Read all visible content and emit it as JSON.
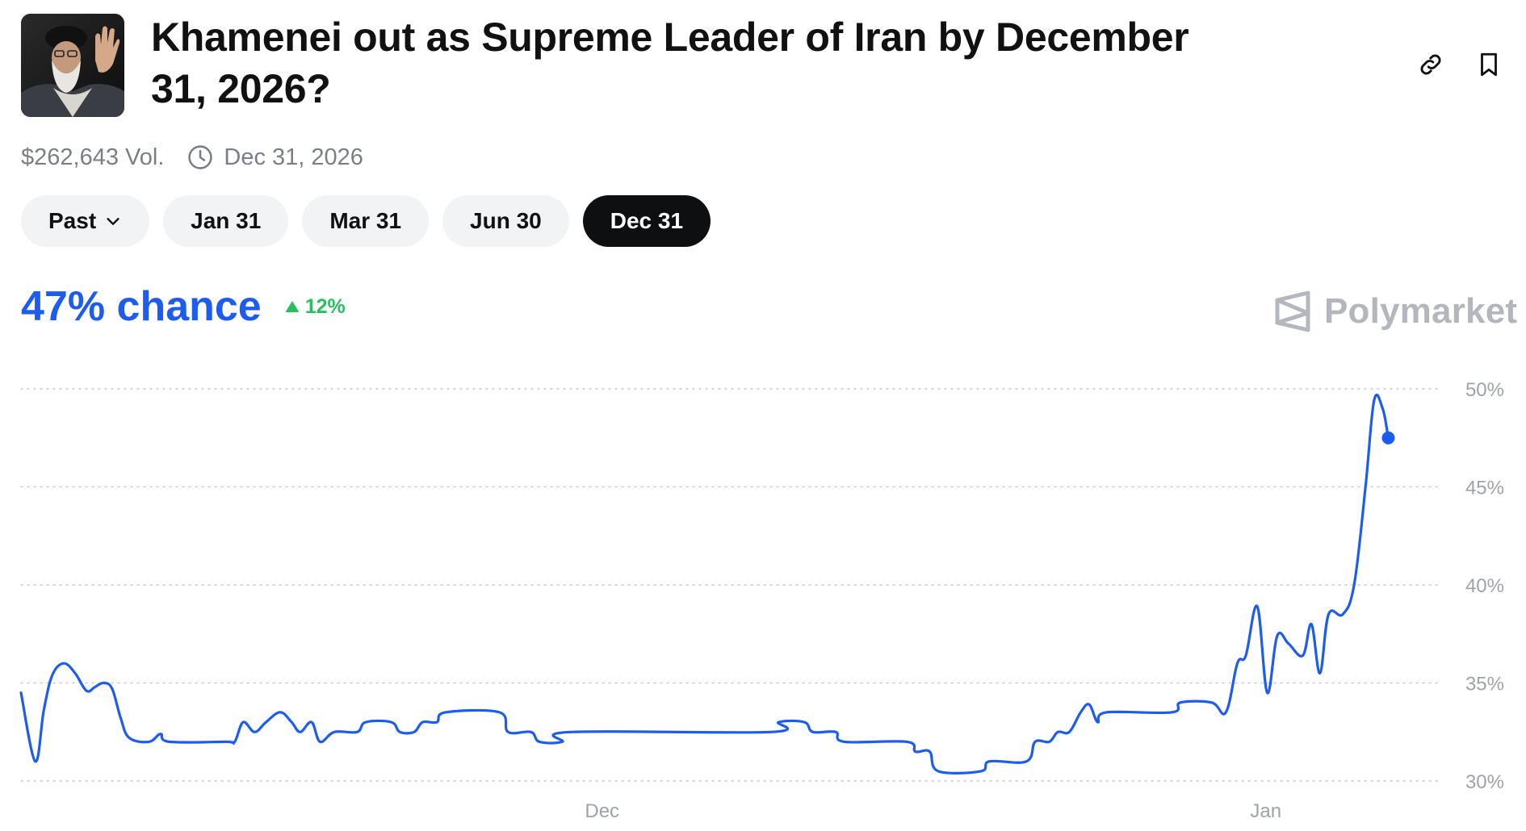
{
  "header": {
    "title": "Khamenei out as Supreme Leader of Iran by December 31, 2026?",
    "link_icon": "link-icon",
    "bookmark_icon": "bookmark-icon"
  },
  "meta": {
    "volume": "$262,643 Vol.",
    "end_date": "Dec 31, 2026",
    "clock_icon": "clock-icon"
  },
  "tabs": [
    {
      "label": "Past",
      "has_chevron": true,
      "active": false
    },
    {
      "label": "Jan 31",
      "active": false
    },
    {
      "label": "Mar 31",
      "active": false
    },
    {
      "label": "Jun 30",
      "active": false
    },
    {
      "label": "Dec 31",
      "active": true
    }
  ],
  "odds": {
    "chance": "47% chance",
    "change": "12%",
    "change_direction": "up",
    "color": "#1d5cf0",
    "change_color": "#2bbd5f"
  },
  "brand": {
    "name": "Polymarket"
  },
  "chart_data": {
    "type": "line",
    "y_ticks": [
      "50%",
      "45%",
      "40%",
      "35%",
      "30%"
    ],
    "y_tick_values": [
      50,
      45,
      40,
      35,
      30
    ],
    "x_ticks": [
      {
        "label": "Dec",
        "t": 0.408
      },
      {
        "label": "Jan",
        "t": 0.874
      }
    ],
    "ylim": [
      30,
      50
    ],
    "grid": true,
    "line_color": "#1d5cf0",
    "series": [
      {
        "values": [
          [
            0.0,
            34.5
          ],
          [
            0.01,
            31.0
          ],
          [
            0.016,
            33.6
          ],
          [
            0.022,
            35.4
          ],
          [
            0.03,
            36.0
          ],
          [
            0.038,
            35.5
          ],
          [
            0.046,
            34.6
          ],
          [
            0.052,
            34.8
          ],
          [
            0.058,
            35.0
          ],
          [
            0.064,
            34.7
          ],
          [
            0.07,
            33.2
          ],
          [
            0.076,
            32.2
          ],
          [
            0.09,
            32.0
          ],
          [
            0.098,
            32.4
          ],
          [
            0.104,
            32.0
          ],
          [
            0.144,
            32.0
          ],
          [
            0.15,
            32.0
          ],
          [
            0.156,
            33.0
          ],
          [
            0.164,
            32.5
          ],
          [
            0.172,
            33.0
          ],
          [
            0.182,
            33.5
          ],
          [
            0.19,
            33.0
          ],
          [
            0.196,
            32.5
          ],
          [
            0.204,
            33.0
          ],
          [
            0.21,
            32.0
          ],
          [
            0.22,
            32.5
          ],
          [
            0.236,
            32.5
          ],
          [
            0.242,
            33.0
          ],
          [
            0.26,
            33.0
          ],
          [
            0.266,
            32.5
          ],
          [
            0.276,
            32.5
          ],
          [
            0.282,
            33.0
          ],
          [
            0.292,
            33.0
          ],
          [
            0.298,
            33.5
          ],
          [
            0.336,
            33.5
          ],
          [
            0.342,
            32.5
          ],
          [
            0.358,
            32.5
          ],
          [
            0.364,
            32.0
          ],
          [
            0.38,
            32.0
          ],
          [
            0.386,
            32.5
          ],
          [
            0.526,
            32.5
          ],
          [
            0.532,
            33.0
          ],
          [
            0.55,
            33.0
          ],
          [
            0.556,
            32.5
          ],
          [
            0.572,
            32.5
          ],
          [
            0.578,
            32.0
          ],
          [
            0.622,
            32.0
          ],
          [
            0.628,
            31.5
          ],
          [
            0.638,
            31.5
          ],
          [
            0.644,
            30.5
          ],
          [
            0.674,
            30.5
          ],
          [
            0.68,
            31.0
          ],
          [
            0.706,
            31.0
          ],
          [
            0.712,
            32.0
          ],
          [
            0.722,
            32.0
          ],
          [
            0.728,
            32.5
          ],
          [
            0.736,
            32.5
          ],
          [
            0.744,
            33.5
          ],
          [
            0.75,
            33.9
          ],
          [
            0.756,
            33.0
          ],
          [
            0.762,
            33.5
          ],
          [
            0.808,
            33.5
          ],
          [
            0.814,
            34.0
          ],
          [
            0.836,
            34.0
          ],
          [
            0.846,
            33.5
          ],
          [
            0.854,
            36.0
          ],
          [
            0.86,
            36.4
          ],
          [
            0.868,
            38.9
          ],
          [
            0.875,
            34.5
          ],
          [
            0.882,
            37.4
          ],
          [
            0.89,
            37.0
          ],
          [
            0.9,
            36.4
          ],
          [
            0.906,
            38.0
          ],
          [
            0.912,
            35.5
          ],
          [
            0.918,
            38.5
          ],
          [
            0.928,
            38.5
          ],
          [
            0.936,
            40.0
          ],
          [
            0.944,
            45.0
          ],
          [
            0.95,
            49.4
          ],
          [
            0.956,
            49.0
          ],
          [
            0.96,
            47.5
          ]
        ]
      }
    ]
  }
}
